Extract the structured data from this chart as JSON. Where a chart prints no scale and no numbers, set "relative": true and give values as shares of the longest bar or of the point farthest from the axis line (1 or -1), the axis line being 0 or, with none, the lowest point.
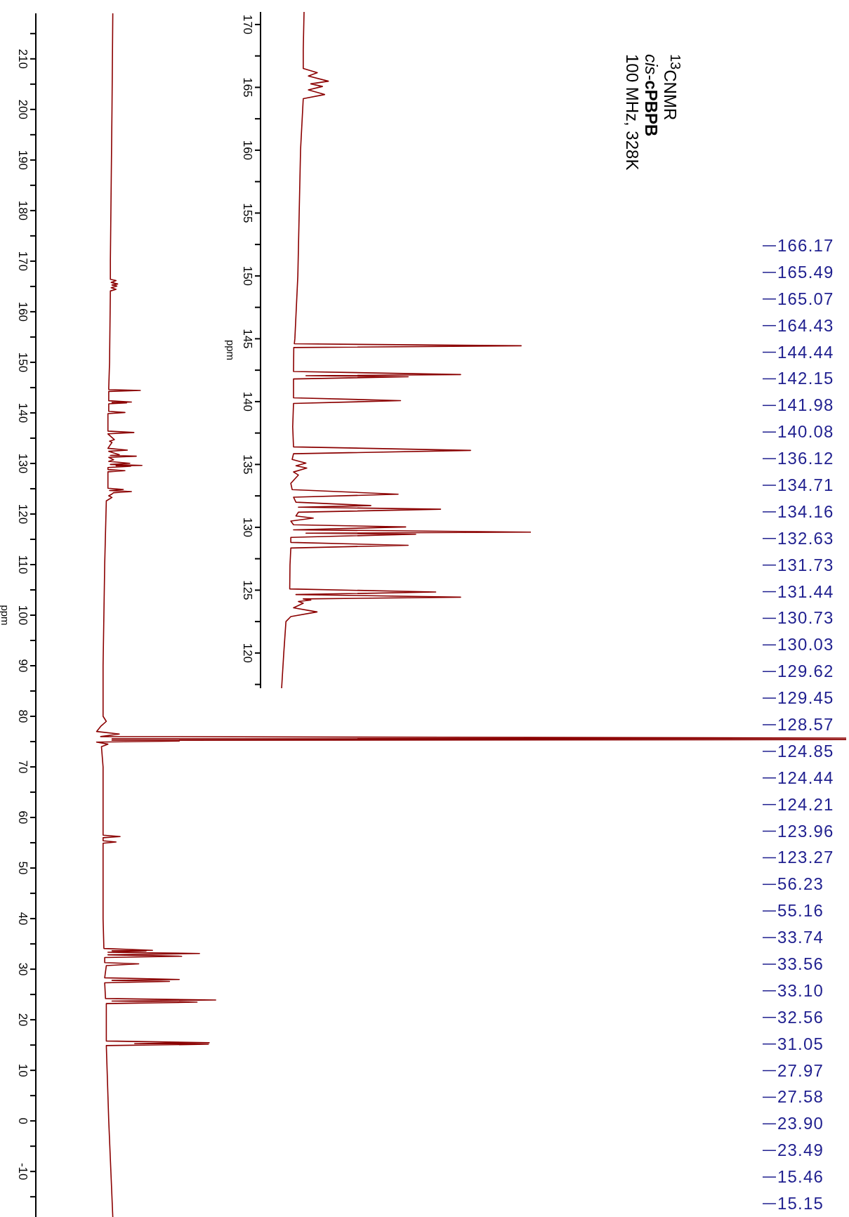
{
  "chart_data": [
    {
      "type": "line",
      "orientation": "horizontal",
      "title": "$^{13}$CNMR",
      "subtitle": "cis-cPBPB",
      "ylabel": "ppm",
      "color": "#8b0000",
      "relative": true,
      "ylim": [
        -19,
        219
      ],
      "yticks": [
        {
          "value": 215,
          "label": null
        },
        210,
        {
          "value": 205,
          "label": null
        },
        200,
        {
          "value": 195,
          "label": null
        },
        190,
        {
          "value": 185,
          "label": null
        },
        180,
        {
          "value": 175,
          "label": null
        },
        170,
        {
          "value": 165,
          "label": null
        },
        160,
        {
          "value": 155,
          "label": null
        },
        150,
        {
          "value": 145,
          "label": null
        },
        140,
        {
          "value": 135,
          "label": null
        },
        130,
        {
          "value": 125,
          "label": null
        },
        120,
        {
          "value": 115,
          "label": null
        },
        110,
        {
          "value": 105,
          "label": null
        },
        100,
        {
          "value": 95,
          "label": null
        },
        90,
        {
          "value": 85,
          "label": null
        },
        80,
        {
          "value": 75,
          "label": null
        },
        70,
        {
          "value": 65,
          "label": null
        },
        60,
        {
          "value": 55,
          "label": null
        },
        50,
        {
          "value": 45,
          "label": null
        },
        40,
        {
          "value": 35,
          "label": null
        },
        30,
        {
          "value": 25,
          "label": null
        },
        20,
        {
          "value": 15,
          "label": null
        },
        10,
        {
          "value": 5,
          "label": null
        },
        0,
        {
          "value": -5,
          "label": null
        },
        -10,
        {
          "value": -15,
          "label": null
        }
      ],
      "x": [
        219,
        200,
        170,
        167,
        166.4,
        166.17,
        165.8,
        165.49,
        165.28,
        165.07,
        164.75,
        164.43,
        164.1,
        150,
        145,
        144.6,
        144.44,
        144.25,
        142.4,
        142.15,
        142.06,
        141.98,
        141.8,
        140.3,
        140.08,
        139.85,
        136.4,
        136.12,
        135.85,
        134.71,
        134.4,
        134.16,
        133.0,
        132.63,
        132.4,
        131.73,
        131.6,
        131.44,
        131.2,
        130.73,
        130.4,
        130.03,
        129.8,
        129.62,
        129.53,
        129.45,
        129.2,
        128.8,
        128.57,
        128.35,
        125.1,
        124.85,
        124.65,
        124.44,
        124.21,
        123.96,
        123.6,
        123.27,
        122.6,
        110,
        90,
        80,
        79,
        78,
        77.0,
        76.5,
        76.0,
        75.7,
        75.55,
        75.4,
        75.25,
        75.1,
        74.9,
        74.5,
        74,
        70,
        56.5,
        56.23,
        56.0,
        55.4,
        55.16,
        54.9,
        40,
        34.1,
        33.74,
        33.65,
        33.56,
        33.35,
        33.1,
        32.85,
        32.56,
        32.3,
        31.3,
        31.05,
        30.7,
        28.3,
        27.97,
        27.78,
        27.58,
        27.3,
        24.2,
        23.9,
        23.7,
        23.49,
        23.2,
        15.8,
        15.46,
        15.3,
        15.15,
        14.9,
        0,
        -19
      ],
      "values": [
        0.095,
        0.094,
        0.092,
        0.092,
        0.092,
        0.099,
        0.093,
        0.101,
        0.094,
        0.1,
        0.093,
        0.099,
        0.092,
        0.091,
        0.09,
        0.09,
        0.129,
        0.09,
        0.09,
        0.118,
        0.094,
        0.112,
        0.09,
        0.09,
        0.11,
        0.089,
        0.089,
        0.121,
        0.089,
        0.097,
        0.091,
        0.094,
        0.089,
        0.113,
        0.09,
        0.103,
        0.092,
        0.124,
        0.09,
        0.096,
        0.09,
        0.116,
        0.092,
        0.131,
        0.099,
        0.117,
        0.089,
        0.089,
        0.11,
        0.089,
        0.089,
        0.108,
        0.091,
        0.118,
        0.096,
        0.094,
        0.09,
        0.094,
        0.087,
        0.085,
        0.083,
        0.083,
        0.087,
        0.08,
        0.075,
        0.103,
        0.08,
        1,
        0.094,
        1,
        0.094,
        0.177,
        0.075,
        0.089,
        0.081,
        0.083,
        0.083,
        0.104,
        0.083,
        0.083,
        0.099,
        0.083,
        0.083,
        0.084,
        0.144,
        0.094,
        0.136,
        0.089,
        0.202,
        0.089,
        0.18,
        0.085,
        0.085,
        0.127,
        0.087,
        0.085,
        0.177,
        0.094,
        0.165,
        0.085,
        0.086,
        0.222,
        0.094,
        0.199,
        0.087,
        0.087,
        0.214,
        0.122,
        0.213,
        0.087,
        0.09,
        0.095
      ],
      "annotations": [
        "100 MHz, 328K",
        "166.17",
        "165.49",
        "165.07",
        "164.43",
        "144.44",
        "142.15",
        "141.98",
        "140.08",
        "136.12",
        "134.71",
        "134.16",
        "132.63",
        "131.73",
        "131.44",
        "130.73",
        "130.03",
        "129.62",
        "129.45",
        "128.57",
        "124.85",
        "124.44",
        "124.21",
        "123.96",
        "123.27",
        "56.23",
        "55.16",
        "33.74",
        "33.56",
        "33.10",
        "32.56",
        "31.05",
        "27.97",
        "27.58",
        "23.90",
        "23.49",
        "15.46",
        "15.15"
      ]
    },
    {
      "type": "line",
      "orientation": "horizontal",
      "ylabel": "ppm",
      "color": "#8b0000",
      "relative": true,
      "ylim": [
        117.2,
        171
      ],
      "yticks": [
        170,
        {
          "value": 167.5,
          "label": null
        },
        165,
        {
          "value": 162.5,
          "label": null
        },
        160,
        {
          "value": 157.5,
          "label": null
        },
        155,
        {
          "value": 152.5,
          "label": null
        },
        150,
        {
          "value": 147.5,
          "label": null
        },
        145,
        {
          "value": 142.5,
          "label": null
        },
        140,
        {
          "value": 137.5,
          "label": null
        },
        135,
        {
          "value": 132.5,
          "label": null
        },
        130,
        {
          "value": 127.5,
          "label": null
        },
        125,
        {
          "value": 122.5,
          "label": null
        },
        120,
        {
          "value": 117.5,
          "label": null
        }
      ],
      "x": [
        171,
        168,
        166.5,
        166.17,
        165.9,
        165.49,
        165.28,
        165.07,
        164.8,
        164.43,
        164.1,
        160,
        150,
        145,
        144.6,
        144.44,
        144.3,
        142.4,
        142.15,
        142.06,
        141.98,
        141.8,
        140.3,
        140.08,
        139.85,
        138,
        136.4,
        136.12,
        135.85,
        135.4,
        135.1,
        134.9,
        134.71,
        134.4,
        134.16,
        133.5,
        133.0,
        132.63,
        132.4,
        132.0,
        131.73,
        131.6,
        131.44,
        131.2,
        130.9,
        130.73,
        130.5,
        130.2,
        130.03,
        129.8,
        129.62,
        129.53,
        129.45,
        129.2,
        128.8,
        128.57,
        128.35,
        127,
        125.1,
        124.85,
        124.65,
        124.44,
        124.3,
        124.21,
        124.1,
        123.96,
        123.6,
        123.27,
        122.9,
        122.5,
        120,
        117.2
      ],
      "values": [
        0.161,
        0.158,
        0.158,
        0.21,
        0.177,
        0.251,
        0.186,
        0.229,
        0.177,
        0.237,
        0.158,
        0.148,
        0.138,
        0.127,
        0.125,
        0.964,
        0.123,
        0.122,
        0.74,
        0.168,
        0.546,
        0.122,
        0.122,
        0.518,
        0.122,
        0.119,
        0.122,
        0.777,
        0.122,
        0.117,
        0.168,
        0.131,
        0.171,
        0.122,
        0.14,
        0.112,
        0.117,
        0.509,
        0.122,
        0.131,
        0.408,
        0.14,
        0.666,
        0.14,
        0.131,
        0.195,
        0.112,
        0.122,
        0.537,
        0.122,
        1,
        0.168,
        0.574,
        0.112,
        0.112,
        0.546,
        0.112,
        0.109,
        0.108,
        0.648,
        0.131,
        0.74,
        0.158,
        0.186,
        0.14,
        0.158,
        0.122,
        0.209,
        0.112,
        0.094,
        0.086,
        0.078
      ]
    }
  ]
}
